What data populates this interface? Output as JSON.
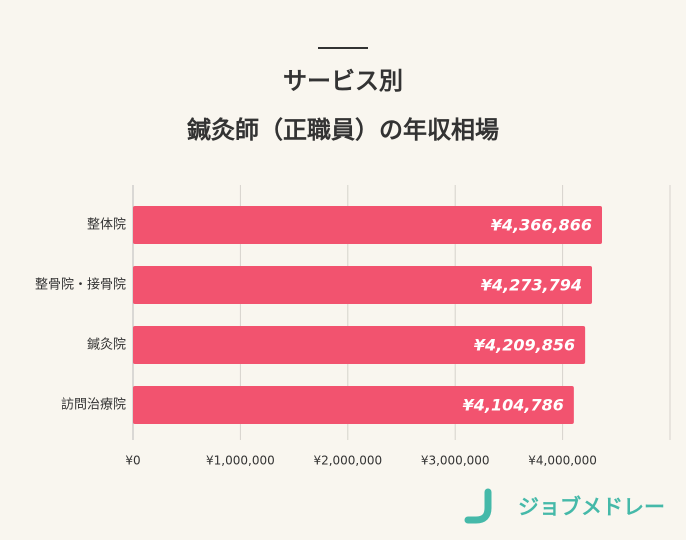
{
  "chart_data": {
    "type": "bar",
    "orientation": "horizontal",
    "title": [
      "サービス別",
      "鍼灸師（正職員）の年収相場"
    ],
    "categories": [
      "整体院",
      "整骨院・接骨院",
      "鍼灸院",
      "訪問治療院"
    ],
    "values": [
      4366866,
      4273794,
      4209856,
      4104786
    ],
    "value_labels": [
      "¥4,366,866",
      "¥4,273,794",
      "¥4,209,856",
      "¥4,104,786"
    ],
    "color": "#f2536f",
    "xlim": [
      0,
      5000000
    ],
    "xticks": [
      {
        "value": 0,
        "label": "¥0"
      },
      {
        "value": 1000000,
        "label": "¥1,000,000"
      },
      {
        "value": 2000000,
        "label": "¥2,000,000"
      },
      {
        "value": 3000000,
        "label": "¥3,000,000"
      },
      {
        "value": 4000000,
        "label": "¥4,000,000"
      }
    ],
    "grid": true
  },
  "logo": "ジョブメドレー"
}
